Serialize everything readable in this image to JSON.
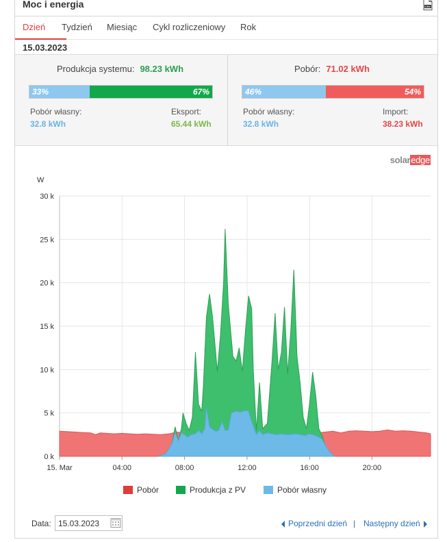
{
  "header": {
    "title": "Moc i energia",
    "csv_icon": "csv-file-icon"
  },
  "tabs": [
    {
      "label": "Dzień",
      "active": true
    },
    {
      "label": "Tydzień"
    },
    {
      "label": "Miesiąc"
    },
    {
      "label": "Cykl rozliczeniowy"
    },
    {
      "label": "Rok"
    }
  ],
  "date_header": "15.03.2023",
  "production": {
    "label": "Produkcja systemu:",
    "value": "98.23 kWh",
    "bar_left_pct": "33%",
    "bar_right_pct": "67%",
    "left_fraction": 0.33,
    "self_label": "Pobór własny:",
    "self_value": "32.8 kWh",
    "export_label": "Eksport:",
    "export_value": "65.44 kWh"
  },
  "consumption": {
    "label": "Pobór:",
    "value": "71.02 kWh",
    "bar_left_pct": "46%",
    "bar_right_pct": "54%",
    "left_fraction": 0.46,
    "self_label": "Pobór własny:",
    "self_value": "32.8 kWh",
    "import_label": "Import:",
    "import_value": "38.23 kWh"
  },
  "brand": {
    "part1": "solar",
    "part2": "edge"
  },
  "colors": {
    "consumption": "#f07474",
    "production": "#3dbf6e",
    "self": "#6db9e8",
    "green_dark": "#2f9e55",
    "red_text": "#e04848",
    "green_text": "#2e9e4f",
    "blue_text": "#6ab3e3",
    "export_text": "#7bb84a"
  },
  "chart_data": {
    "type": "area",
    "ylabel": "W",
    "y_ticks": [
      "0 k",
      "5 k",
      "10 k",
      "15 k",
      "20 k",
      "25 k",
      "30 k"
    ],
    "ylim": [
      0,
      30000
    ],
    "x_ticks": [
      "15. Mar",
      "04:00",
      "08:00",
      "12:00",
      "16:00",
      "20:00"
    ],
    "x_hours": [
      0,
      4,
      8,
      12,
      16,
      20
    ],
    "xlim": [
      0,
      23.75
    ],
    "legend": [
      "Pobór",
      "Produkcja z PV",
      "Pobór własny"
    ],
    "series": [
      {
        "name": "Pobór",
        "points": [
          [
            0,
            2900
          ],
          [
            0.5,
            2850
          ],
          [
            1,
            2800
          ],
          [
            1.5,
            2750
          ],
          [
            2,
            2700
          ],
          [
            2.3,
            2500
          ],
          [
            2.6,
            2700
          ],
          [
            3,
            2650
          ],
          [
            3.5,
            2600
          ],
          [
            4,
            2650
          ],
          [
            4.5,
            2600
          ],
          [
            5,
            2550
          ],
          [
            5.5,
            2600
          ],
          [
            6,
            2550
          ],
          [
            6.5,
            2500
          ],
          [
            7,
            2600
          ],
          [
            7.5,
            2800
          ],
          [
            8,
            2700
          ],
          [
            8.5,
            2600
          ],
          [
            9,
            3000
          ],
          [
            9.5,
            2900
          ],
          [
            10,
            2800
          ],
          [
            10.5,
            2700
          ],
          [
            11,
            2800
          ],
          [
            11.5,
            2700
          ],
          [
            12,
            2600
          ],
          [
            12.5,
            2700
          ],
          [
            13,
            2650
          ],
          [
            13.5,
            2700
          ],
          [
            14,
            2600
          ],
          [
            14.5,
            2600
          ],
          [
            15,
            2700
          ],
          [
            15.5,
            2700
          ],
          [
            16,
            2800
          ],
          [
            16.5,
            2700
          ],
          [
            17,
            2800
          ],
          [
            17.5,
            2900
          ],
          [
            18,
            2700
          ],
          [
            18.5,
            2900
          ],
          [
            19,
            2950
          ],
          [
            19.5,
            2900
          ],
          [
            20,
            2850
          ],
          [
            20.5,
            2900
          ],
          [
            21,
            3050
          ],
          [
            21.5,
            2900
          ],
          [
            22,
            2950
          ],
          [
            22.5,
            2900
          ],
          [
            23,
            2800
          ],
          [
            23.5,
            2700
          ],
          [
            23.75,
            2600
          ]
        ]
      },
      {
        "name": "Produkcja z PV",
        "points": [
          [
            6.3,
            0
          ],
          [
            6.8,
            300
          ],
          [
            7.2,
            1500
          ],
          [
            7.4,
            3400
          ],
          [
            7.6,
            1800
          ],
          [
            7.8,
            3200
          ],
          [
            7.9,
            5000
          ],
          [
            8.1,
            3800
          ],
          [
            8.3,
            3000
          ],
          [
            8.5,
            4500
          ],
          [
            8.7,
            12000
          ],
          [
            8.9,
            6000
          ],
          [
            9.1,
            5200
          ],
          [
            9.2,
            8000
          ],
          [
            9.4,
            16000
          ],
          [
            9.6,
            18700
          ],
          [
            9.8,
            16000
          ],
          [
            10.1,
            9800
          ],
          [
            10.3,
            14000
          ],
          [
            10.5,
            20000
          ],
          [
            10.6,
            26200
          ],
          [
            10.8,
            17500
          ],
          [
            11.1,
            11500
          ],
          [
            11.3,
            11000
          ],
          [
            11.5,
            12500
          ],
          [
            11.7,
            9800
          ],
          [
            11.9,
            14500
          ],
          [
            12.1,
            18500
          ],
          [
            12.3,
            17000
          ],
          [
            12.4,
            10000
          ],
          [
            12.6,
            3000
          ],
          [
            12.8,
            8500
          ],
          [
            13.0,
            3200
          ],
          [
            13.3,
            3800
          ],
          [
            13.6,
            11000
          ],
          [
            13.8,
            16500
          ],
          [
            14.0,
            10000
          ],
          [
            14.2,
            12000
          ],
          [
            14.4,
            17200
          ],
          [
            14.6,
            9500
          ],
          [
            14.8,
            14500
          ],
          [
            15.0,
            21500
          ],
          [
            15.2,
            11500
          ],
          [
            15.4,
            8500
          ],
          [
            15.6,
            4500
          ],
          [
            15.8,
            3200
          ],
          [
            16.0,
            6000
          ],
          [
            16.2,
            9700
          ],
          [
            16.4,
            7000
          ],
          [
            16.6,
            3200
          ],
          [
            16.8,
            2400
          ],
          [
            17.0,
            1200
          ],
          [
            17.3,
            400
          ],
          [
            17.6,
            0
          ]
        ]
      },
      {
        "name": "Pobór własny",
        "points": [
          [
            6.3,
            0
          ],
          [
            6.8,
            300
          ],
          [
            7.2,
            1500
          ],
          [
            7.4,
            2800
          ],
          [
            7.6,
            1800
          ],
          [
            7.8,
            2700
          ],
          [
            8.0,
            2500
          ],
          [
            8.2,
            2200
          ],
          [
            8.4,
            2500
          ],
          [
            8.7,
            2600
          ],
          [
            8.9,
            3000
          ],
          [
            9.1,
            2600
          ],
          [
            9.3,
            3200
          ],
          [
            9.4,
            5700
          ],
          [
            9.6,
            3400
          ],
          [
            9.8,
            3100
          ],
          [
            10.0,
            2900
          ],
          [
            10.2,
            3000
          ],
          [
            10.4,
            4000
          ],
          [
            10.6,
            3000
          ],
          [
            10.8,
            3000
          ],
          [
            11.0,
            5000
          ],
          [
            11.3,
            5200
          ],
          [
            11.6,
            5100
          ],
          [
            11.9,
            5300
          ],
          [
            12.1,
            5200
          ],
          [
            12.3,
            4000
          ],
          [
            12.6,
            2500
          ],
          [
            12.8,
            3000
          ],
          [
            13.0,
            2500
          ],
          [
            13.3,
            2700
          ],
          [
            13.6,
            2600
          ],
          [
            13.9,
            2500
          ],
          [
            14.2,
            2600
          ],
          [
            14.5,
            2500
          ],
          [
            14.8,
            2500
          ],
          [
            15.1,
            2600
          ],
          [
            15.4,
            2500
          ],
          [
            15.7,
            2400
          ],
          [
            16.0,
            2600
          ],
          [
            16.2,
            2500
          ],
          [
            16.5,
            2300
          ],
          [
            16.8,
            2000
          ],
          [
            17.0,
            1300
          ],
          [
            17.3,
            500
          ],
          [
            17.6,
            0
          ]
        ]
      }
    ]
  },
  "footer": {
    "date_label": "Data:",
    "date_value": "15.03.2023",
    "prev_label": "Poprzedni dzień",
    "separator": "|",
    "next_label": "Następny dzień"
  }
}
